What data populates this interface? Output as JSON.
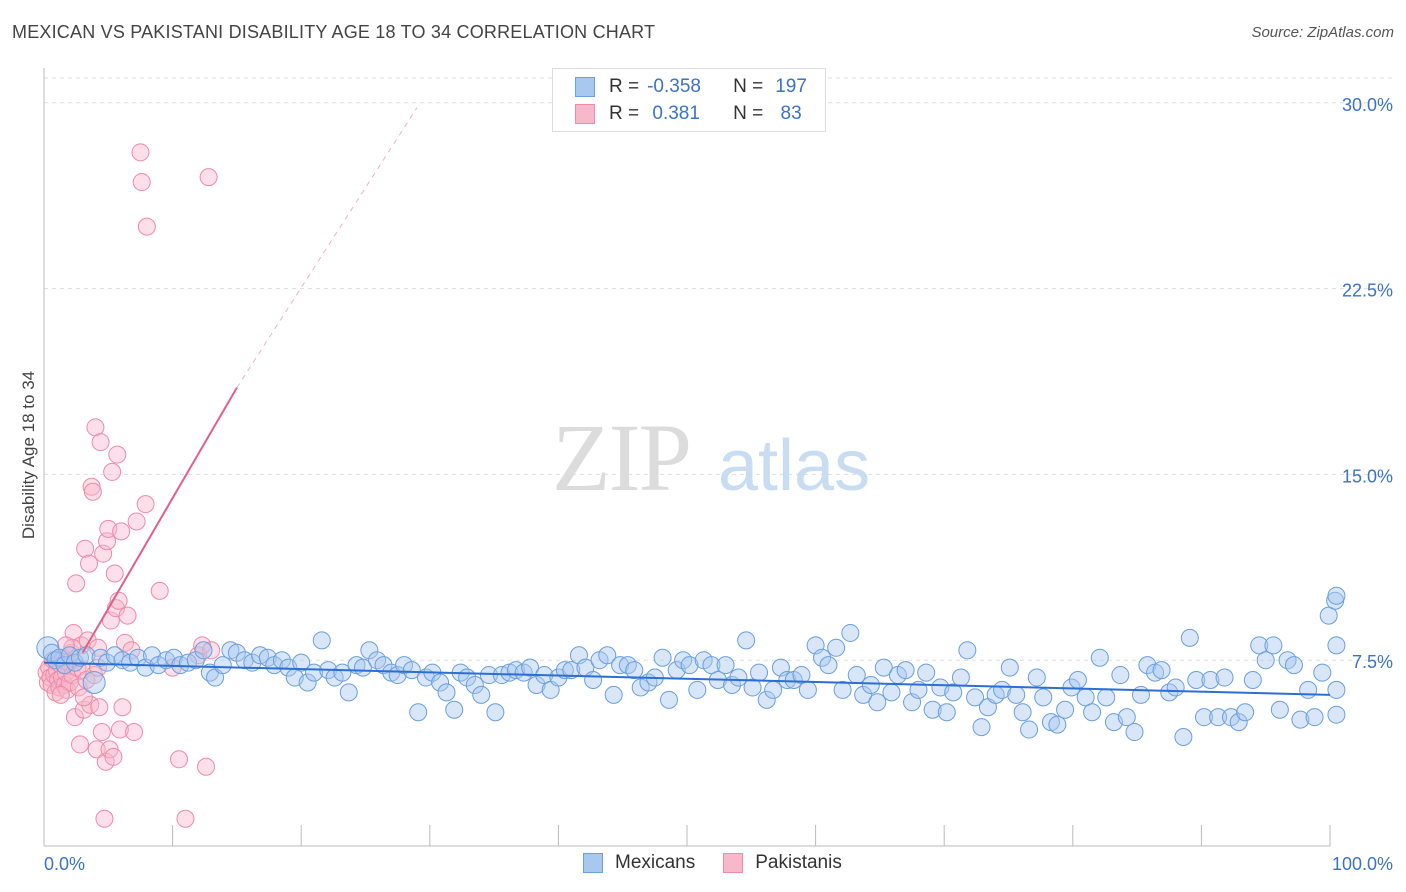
{
  "title": "MEXICAN VS PAKISTANI DISABILITY AGE 18 TO 34 CORRELATION CHART",
  "source": "Source: ZipAtlas.com",
  "watermark": {
    "zip": "ZIP",
    "atlas": "atlas"
  },
  "legend": {
    "rows": [
      {
        "r_label": "R =",
        "r_value": "-0.358",
        "n_label": "N =",
        "n_value": "197"
      },
      {
        "r_label": "R =",
        "r_value": " 0.381",
        "n_label": "N =",
        "n_value": " 83"
      }
    ]
  },
  "bottom_legend": {
    "mexicans": "Mexicans",
    "pakistanis": "Pakistanis"
  },
  "colors": {
    "mexican_fill": "#a8c8f0",
    "mexican_stroke": "#6a9fe0",
    "mexican_line": "#2b6fd6",
    "pakistani_fill": "#f8b8cc",
    "pakistani_stroke": "#ef8aaa",
    "pakistani_line": "#e0608a",
    "tick_label": "#3a73c7",
    "grid": "#dddddd"
  },
  "chart_data": {
    "type": "scatter",
    "title": "MEXICAN VS PAKISTANI DISABILITY AGE 18 TO 34 CORRELATION CHART",
    "xlabel": "",
    "ylabel": "Disability Age 18 to 34",
    "xlim": [
      0,
      100
    ],
    "ylim": [
      0,
      31
    ],
    "x_tick_labels": [
      "0.0%",
      "100.0%"
    ],
    "y_ticks": [
      7.5,
      15.0,
      22.5,
      30.0
    ],
    "y_tick_labels": [
      "7.5%",
      "15.0%",
      "22.5%",
      "30.0%"
    ],
    "grid": true,
    "legend_position": "top-center",
    "series": [
      {
        "name": "Mexicans",
        "r": -0.358,
        "n": 197,
        "trend": {
          "x": [
            0,
            100
          ],
          "y": [
            7.4,
            6.1
          ]
        },
        "points": [
          [
            0.3,
            8.0
          ],
          [
            0.6,
            7.8
          ],
          [
            0.9,
            7.5
          ],
          [
            1.2,
            7.6
          ],
          [
            1.6,
            7.3
          ],
          [
            2.0,
            7.7
          ],
          [
            2.4,
            7.4
          ],
          [
            2.8,
            7.6
          ],
          [
            3.3,
            7.7
          ],
          [
            3.9,
            6.6
          ],
          [
            4.4,
            7.6
          ],
          [
            4.9,
            7.4
          ],
          [
            5.5,
            7.7
          ],
          [
            6.1,
            7.5
          ],
          [
            6.7,
            7.4
          ],
          [
            7.3,
            7.6
          ],
          [
            7.9,
            7.2
          ],
          [
            8.4,
            7.7
          ],
          [
            8.9,
            7.3
          ],
          [
            9.5,
            7.5
          ],
          [
            10.1,
            7.6
          ],
          [
            10.6,
            7.3
          ],
          [
            11.2,
            7.4
          ],
          [
            11.8,
            7.5
          ],
          [
            12.4,
            7.9
          ],
          [
            12.9,
            7.0
          ],
          [
            13.3,
            6.8
          ],
          [
            13.9,
            7.3
          ],
          [
            14.5,
            7.9
          ],
          [
            15.0,
            7.8
          ],
          [
            15.6,
            7.5
          ],
          [
            16.2,
            7.4
          ],
          [
            16.8,
            7.7
          ],
          [
            17.4,
            7.6
          ],
          [
            17.9,
            7.3
          ],
          [
            18.5,
            7.5
          ],
          [
            19.0,
            7.2
          ],
          [
            19.5,
            6.8
          ],
          [
            20.0,
            7.4
          ],
          [
            20.5,
            6.6
          ],
          [
            21.0,
            7.0
          ],
          [
            21.6,
            8.3
          ],
          [
            22.1,
            7.1
          ],
          [
            22.6,
            6.8
          ],
          [
            23.2,
            7.0
          ],
          [
            23.7,
            6.2
          ],
          [
            24.3,
            7.3
          ],
          [
            24.8,
            7.2
          ],
          [
            25.3,
            7.9
          ],
          [
            25.9,
            7.5
          ],
          [
            26.4,
            7.3
          ],
          [
            27.0,
            7.0
          ],
          [
            27.5,
            6.9
          ],
          [
            28.0,
            7.3
          ],
          [
            28.6,
            7.1
          ],
          [
            29.1,
            5.4
          ],
          [
            29.7,
            6.8
          ],
          [
            30.2,
            7.0
          ],
          [
            30.8,
            6.6
          ],
          [
            31.3,
            6.2
          ],
          [
            31.9,
            5.5
          ],
          [
            32.4,
            7.0
          ],
          [
            32.9,
            6.8
          ],
          [
            33.5,
            6.5
          ],
          [
            34.0,
            6.1
          ],
          [
            34.6,
            6.9
          ],
          [
            35.1,
            5.4
          ],
          [
            35.6,
            6.9
          ],
          [
            36.2,
            7.0
          ],
          [
            36.7,
            7.1
          ],
          [
            37.3,
            7.0
          ],
          [
            37.8,
            7.2
          ],
          [
            38.3,
            6.5
          ],
          [
            38.9,
            6.9
          ],
          [
            39.4,
            6.3
          ],
          [
            40.0,
            6.8
          ],
          [
            40.5,
            7.1
          ],
          [
            41.0,
            7.1
          ],
          [
            41.6,
            7.7
          ],
          [
            42.1,
            7.2
          ],
          [
            42.7,
            6.7
          ],
          [
            43.2,
            7.5
          ],
          [
            43.8,
            7.7
          ],
          [
            44.3,
            6.1
          ],
          [
            44.8,
            7.3
          ],
          [
            45.4,
            7.3
          ],
          [
            45.9,
            7.1
          ],
          [
            46.4,
            6.4
          ],
          [
            47.0,
            6.6
          ],
          [
            47.5,
            6.8
          ],
          [
            48.1,
            7.6
          ],
          [
            48.6,
            5.9
          ],
          [
            49.2,
            7.1
          ],
          [
            49.7,
            7.5
          ],
          [
            50.2,
            7.3
          ],
          [
            50.8,
            6.3
          ],
          [
            51.3,
            7.5
          ],
          [
            51.9,
            7.3
          ],
          [
            52.4,
            6.7
          ],
          [
            53.0,
            7.3
          ],
          [
            53.5,
            6.5
          ],
          [
            54.0,
            6.8
          ],
          [
            54.6,
            8.3
          ],
          [
            55.1,
            6.4
          ],
          [
            55.6,
            7.0
          ],
          [
            56.2,
            5.9
          ],
          [
            56.7,
            6.3
          ],
          [
            57.3,
            7.2
          ],
          [
            57.8,
            6.7
          ],
          [
            58.3,
            6.7
          ],
          [
            58.9,
            6.9
          ],
          [
            59.4,
            6.3
          ],
          [
            60.0,
            8.1
          ],
          [
            60.5,
            7.6
          ],
          [
            61.0,
            7.3
          ],
          [
            61.6,
            8.0
          ],
          [
            62.1,
            6.3
          ],
          [
            62.7,
            8.6
          ],
          [
            63.2,
            6.9
          ],
          [
            63.7,
            6.1
          ],
          [
            64.3,
            6.5
          ],
          [
            64.8,
            5.8
          ],
          [
            65.3,
            7.2
          ],
          [
            65.9,
            6.2
          ],
          [
            66.4,
            6.9
          ],
          [
            67.0,
            7.1
          ],
          [
            67.5,
            5.8
          ],
          [
            68.0,
            6.3
          ],
          [
            68.6,
            7.0
          ],
          [
            69.1,
            5.5
          ],
          [
            69.7,
            6.4
          ],
          [
            70.2,
            5.4
          ],
          [
            70.7,
            6.2
          ],
          [
            71.3,
            6.8
          ],
          [
            71.8,
            7.9
          ],
          [
            72.4,
            6.0
          ],
          [
            72.9,
            4.8
          ],
          [
            73.4,
            5.6
          ],
          [
            74.0,
            6.1
          ],
          [
            74.5,
            6.3
          ],
          [
            75.1,
            7.2
          ],
          [
            75.6,
            6.1
          ],
          [
            76.1,
            5.4
          ],
          [
            76.6,
            4.7
          ],
          [
            77.2,
            6.8
          ],
          [
            77.7,
            6.0
          ],
          [
            78.3,
            5.0
          ],
          [
            78.8,
            4.9
          ],
          [
            79.4,
            5.5
          ],
          [
            79.9,
            6.4
          ],
          [
            80.4,
            6.7
          ],
          [
            81.0,
            6.0
          ],
          [
            81.5,
            5.4
          ],
          [
            82.1,
            7.6
          ],
          [
            82.6,
            6.0
          ],
          [
            83.2,
            5.0
          ],
          [
            83.7,
            6.9
          ],
          [
            84.2,
            5.2
          ],
          [
            84.8,
            4.6
          ],
          [
            85.3,
            6.1
          ],
          [
            85.8,
            7.3
          ],
          [
            86.4,
            7.0
          ],
          [
            86.9,
            7.1
          ],
          [
            87.5,
            6.2
          ],
          [
            88.0,
            6.4
          ],
          [
            88.6,
            4.4
          ],
          [
            89.1,
            8.4
          ],
          [
            89.6,
            6.7
          ],
          [
            90.2,
            5.2
          ],
          [
            90.7,
            6.7
          ],
          [
            91.3,
            5.2
          ],
          [
            91.8,
            6.8
          ],
          [
            92.3,
            5.2
          ],
          [
            92.9,
            5.0
          ],
          [
            93.4,
            5.4
          ],
          [
            94.0,
            6.7
          ],
          [
            94.5,
            8.1
          ],
          [
            95.0,
            7.5
          ],
          [
            95.6,
            8.1
          ],
          [
            96.1,
            5.5
          ],
          [
            96.7,
            7.5
          ],
          [
            97.2,
            7.3
          ],
          [
            97.7,
            5.1
          ],
          [
            98.3,
            6.3
          ],
          [
            98.8,
            5.2
          ],
          [
            99.4,
            7.0
          ],
          [
            99.9,
            9.3
          ],
          [
            100.4,
            9.9
          ],
          [
            101.0,
            6.3
          ],
          [
            101.5,
            10.1
          ],
          [
            102.1,
            5.3
          ],
          [
            102.6,
            8.1
          ]
        ]
      },
      {
        "name": "Pakistanis",
        "r": 0.381,
        "n": 83,
        "trend": {
          "x": [
            3.0,
            15.0
          ],
          "y": [
            7.8,
            18.5
          ]
        },
        "trend_dashed": {
          "x": [
            15.0,
            29.0
          ],
          "y": [
            18.5,
            29.8
          ]
        },
        "points": [
          [
            0.2,
            7.0
          ],
          [
            0.3,
            6.6
          ],
          [
            0.4,
            7.2
          ],
          [
            0.5,
            6.8
          ],
          [
            0.6,
            6.5
          ],
          [
            0.7,
            7.5
          ],
          [
            0.8,
            6.9
          ],
          [
            0.9,
            6.2
          ],
          [
            1.0,
            7.1
          ],
          [
            1.1,
            6.7
          ],
          [
            1.2,
            6.4
          ],
          [
            1.3,
            7.3
          ],
          [
            1.4,
            6.8
          ],
          [
            1.5,
            7.6
          ],
          [
            1.6,
            6.5
          ],
          [
            1.7,
            7.0
          ],
          [
            1.8,
            6.3
          ],
          [
            1.9,
            7.4
          ],
          [
            2.0,
            6.6
          ],
          [
            2.1,
            7.8
          ],
          [
            2.2,
            6.9
          ],
          [
            2.3,
            8.6
          ],
          [
            2.4,
            5.2
          ],
          [
            2.5,
            10.6
          ],
          [
            2.6,
            7.2
          ],
          [
            2.7,
            6.4
          ],
          [
            2.8,
            4.1
          ],
          [
            2.9,
            8.1
          ],
          [
            3.0,
            7.1
          ],
          [
            3.1,
            5.5
          ],
          [
            3.2,
            12.0
          ],
          [
            3.3,
            6.7
          ],
          [
            3.4,
            8.3
          ],
          [
            3.5,
            11.4
          ],
          [
            3.6,
            5.7
          ],
          [
            3.7,
            14.5
          ],
          [
            3.8,
            14.3
          ],
          [
            3.9,
            6.9
          ],
          [
            4.0,
            16.9
          ],
          [
            4.1,
            3.9
          ],
          [
            4.2,
            8.0
          ],
          [
            4.3,
            5.6
          ],
          [
            4.4,
            16.3
          ],
          [
            4.5,
            4.6
          ],
          [
            4.6,
            11.8
          ],
          [
            4.7,
            1.1
          ],
          [
            4.8,
            3.4
          ],
          [
            4.9,
            12.3
          ],
          [
            5.0,
            12.8
          ],
          [
            5.1,
            3.9
          ],
          [
            5.2,
            9.1
          ],
          [
            5.3,
            15.1
          ],
          [
            5.4,
            3.6
          ],
          [
            5.5,
            11.0
          ],
          [
            5.6,
            9.6
          ],
          [
            5.7,
            15.8
          ],
          [
            5.8,
            9.9
          ],
          [
            5.9,
            4.7
          ],
          [
            6.0,
            12.7
          ],
          [
            6.1,
            5.6
          ],
          [
            6.3,
            8.2
          ],
          [
            6.5,
            9.3
          ],
          [
            6.8,
            7.9
          ],
          [
            7.0,
            4.6
          ],
          [
            7.2,
            13.1
          ],
          [
            7.5,
            28.0
          ],
          [
            7.6,
            26.8
          ],
          [
            7.9,
            13.8
          ],
          [
            8.0,
            25.0
          ],
          [
            9.0,
            10.3
          ],
          [
            10.0,
            7.2
          ],
          [
            10.5,
            3.5
          ],
          [
            11.0,
            1.1
          ],
          [
            12.0,
            7.7
          ],
          [
            12.3,
            8.1
          ],
          [
            12.6,
            3.2
          ],
          [
            13.0,
            7.9
          ],
          [
            12.8,
            27.0
          ],
          [
            2.2,
            8.0
          ],
          [
            1.7,
            8.1
          ],
          [
            3.1,
            6.0
          ],
          [
            4.2,
            7.2
          ],
          [
            1.3,
            6.1
          ]
        ]
      }
    ]
  }
}
